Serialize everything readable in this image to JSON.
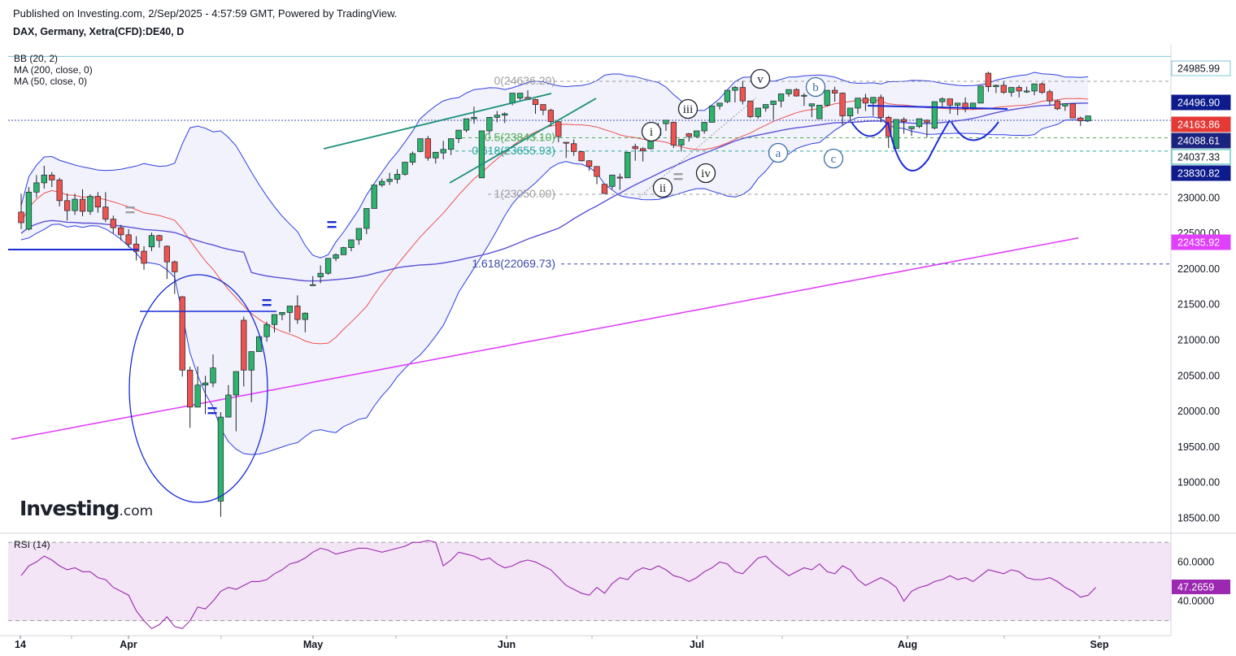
{
  "header": {
    "published": "Published on Investing.com, 2/Sep/2025 - 4:57:59 GMT, Powered by TradingView.",
    "symbol": "DAX, Germany, Xetra(CFD):DE40, D"
  },
  "indicators": {
    "bb": "BB (20, 2)",
    "ma200": "MA (200, close, 0)",
    "ma50": "MA (50, close, 0)",
    "rsi": "RSI (14)"
  },
  "logo": {
    "main": "Investing",
    "suffix": ".com"
  },
  "chart_data": [
    {
      "type": "candlestick",
      "title": "DAX, Germany, Xetra(CFD):DE40, D",
      "x_labels": [
        "14",
        "Apr",
        "May",
        "Jun",
        "Jul",
        "Aug",
        "Sep"
      ],
      "y_ticks": [
        18500,
        19000,
        19500,
        20000,
        20500,
        21000,
        21500,
        22000,
        22500,
        23000
      ],
      "ylim": [
        18300,
        25150
      ],
      "grid": false,
      "price_tags": [
        {
          "value": "24985.99",
          "bg": "#ffffff",
          "fg": "#131722",
          "border": "#7ec8d8"
        },
        {
          "value": "24496.90",
          "bg": "#0d1b8c",
          "fg": "#ffffff"
        },
        {
          "value": "24163.86",
          "bg": "#e53935",
          "fg": "#ffffff"
        },
        {
          "value": "24088.61",
          "bg": "#1a237e",
          "fg": "#ffffff"
        },
        {
          "value": "24037.33",
          "bg": "#ffffff",
          "fg": "#131722",
          "border": "#2bb3a8"
        },
        {
          "value": "23830.82",
          "bg": "#0d1b8c",
          "fg": "#ffffff"
        },
        {
          "value": "22435.92",
          "bg": "#e040fb",
          "fg": "#ffffff"
        }
      ],
      "fib_levels": [
        {
          "label": "0(24636.20)",
          "value": 24636.2,
          "color": "#9e9e9e"
        },
        {
          "label": "0.5(23843.10)",
          "value": 23843.1,
          "color": "#4caf50"
        },
        {
          "label": "0.618(23655.93)",
          "value": 23655.93,
          "color": "#26a69a"
        },
        {
          "label": "1(23050.00)",
          "value": 23050.0,
          "color": "#9e9e9e"
        },
        {
          "label": "1.618(22069.73)",
          "value": 22069.73,
          "color": "#3949ab"
        }
      ],
      "wave_labels": [
        "i",
        "ii",
        "iii",
        "iv",
        "v",
        "a",
        "b",
        "c"
      ],
      "equal_marks": [
        "=",
        "=",
        "=",
        "=",
        "=",
        "="
      ],
      "candles": [
        [
          22800,
          23060,
          22650,
          22560
        ],
        [
          22560,
          23150,
          23080,
          22540
        ],
        [
          23080,
          23320,
          23210,
          23000
        ],
        [
          23210,
          23450,
          23320,
          23130
        ],
        [
          23320,
          23360,
          23250,
          23150
        ],
        [
          23250,
          23280,
          22960,
          22880
        ],
        [
          22960,
          23060,
          22820,
          22680
        ],
        [
          22820,
          23060,
          22980,
          22760
        ],
        [
          22980,
          23120,
          22810,
          22740
        ],
        [
          22810,
          23050,
          23020,
          22760
        ],
        [
          23020,
          23080,
          22870,
          22790
        ],
        [
          22870,
          23080,
          22700,
          22660
        ],
        [
          22700,
          22750,
          22580,
          22500
        ],
        [
          22580,
          22620,
          22480,
          22400
        ],
        [
          22480,
          22560,
          22350,
          22300
        ],
        [
          22350,
          22460,
          22250,
          22120
        ],
        [
          22250,
          22320,
          22080,
          21990
        ],
        [
          22310,
          22510,
          22470,
          22250
        ],
        [
          22470,
          22480,
          22400,
          22300
        ],
        [
          22320,
          22330,
          22100,
          21860
        ],
        [
          22100,
          22120,
          21960,
          21650
        ],
        [
          21610,
          21620,
          20580,
          20490
        ],
        [
          20580,
          20630,
          20060,
          19770
        ],
        [
          20060,
          20630,
          20370,
          20200
        ],
        [
          20370,
          20500,
          20400,
          19960
        ],
        [
          20400,
          20800,
          20610,
          20340
        ],
        [
          18740,
          19990,
          19920,
          18520
        ],
        [
          19920,
          20370,
          20230,
          19930
        ],
        [
          20230,
          20490,
          20560,
          19720
        ],
        [
          21280,
          21330,
          20580,
          20350
        ],
        [
          20580,
          20770,
          20840,
          20130
        ],
        [
          20840,
          20990,
          21050,
          20930
        ],
        [
          21050,
          21260,
          21220,
          20980
        ],
        [
          21220,
          21300,
          21360,
          21110
        ],
        [
          21360,
          21370,
          21390,
          21280
        ],
        [
          21390,
          21480,
          21480,
          21110
        ],
        [
          21480,
          21630,
          21290,
          21230
        ],
        [
          21290,
          21390,
          21380,
          21110
        ],
        [
          21780,
          21900,
          21780,
          21770
        ],
        [
          21890,
          22050,
          21940,
          21800
        ],
        [
          21940,
          22140,
          22150,
          21920
        ],
        [
          22150,
          22220,
          22200,
          22110
        ],
        [
          22200,
          22310,
          22300,
          22230
        ],
        [
          22300,
          22390,
          22410,
          22250
        ],
        [
          22410,
          22430,
          22570,
          22340
        ],
        [
          22570,
          22610,
          22850,
          22490
        ],
        [
          22850,
          23150,
          23180,
          22890
        ],
        [
          23180,
          23270,
          23230,
          23150
        ],
        [
          23230,
          23350,
          23260,
          23180
        ],
        [
          23260,
          23400,
          23330,
          23200
        ],
        [
          23330,
          23490,
          23500,
          23310
        ],
        [
          23500,
          23650,
          23620,
          23460
        ],
        [
          23650,
          23760,
          23830,
          23640
        ],
        [
          23830,
          23870,
          23560,
          23520
        ],
        [
          23560,
          23590,
          23640,
          23480
        ],
        [
          23630,
          23800,
          23680,
          23540
        ],
        [
          23680,
          23820,
          23830,
          23600
        ],
        [
          23830,
          23900,
          23950,
          23770
        ],
        [
          23950,
          24050,
          24110,
          23920
        ],
        [
          24110,
          24280,
          24130,
          24040
        ],
        [
          23280,
          23330,
          23940,
          23880
        ],
        [
          23940,
          23990,
          24130,
          23900
        ],
        [
          24130,
          24220,
          24160,
          24060
        ],
        [
          24160,
          24200,
          24180,
          24050
        ],
        [
          24330,
          24370,
          24470,
          24300
        ],
        [
          24400,
          24450,
          24470,
          24370
        ],
        [
          24410,
          24510,
          24380,
          24370
        ],
        [
          24380,
          24390,
          24310,
          24180
        ],
        [
          24310,
          24280,
          24230,
          24160
        ],
        [
          24230,
          24250,
          24070,
          24000
        ],
        [
          24070,
          24040,
          23860,
          23780
        ],
        [
          23780,
          23690,
          23770,
          23560
        ],
        [
          23760,
          23820,
          23650,
          23590
        ],
        [
          23650,
          23620,
          23520,
          23510
        ],
        [
          23520,
          23530,
          23440,
          23380
        ],
        [
          23440,
          23430,
          23300,
          23190
        ],
        [
          23190,
          23160,
          23060,
          23070
        ],
        [
          23160,
          23270,
          23320,
          23120
        ],
        [
          23290,
          23340,
          23280,
          23110
        ],
        [
          23280,
          23300,
          23640,
          23320
        ],
        [
          23720,
          23760,
          23690,
          23520
        ],
        [
          23690,
          23710,
          23660,
          23510
        ],
        [
          23690,
          23890,
          23880,
          23680
        ],
        [
          23880,
          24050,
          23970,
          23830
        ],
        [
          24040,
          24000,
          24090,
          23940
        ],
        [
          24060,
          24070,
          23740,
          23700
        ],
        [
          23740,
          23720,
          23820,
          23650
        ],
        [
          23900,
          23910,
          23860,
          23790
        ],
        [
          23860,
          23890,
          23940,
          23850
        ],
        [
          23940,
          23930,
          24060,
          23900
        ],
        [
          24060,
          24040,
          24290,
          24090
        ],
        [
          24290,
          24250,
          24330,
          24240
        ],
        [
          24350,
          24380,
          24510,
          24330
        ],
        [
          24510,
          24570,
          24550,
          24340
        ],
        [
          24550,
          24640,
          24360,
          24310
        ],
        [
          24360,
          24330,
          24140,
          24120
        ],
        [
          24140,
          24120,
          24260,
          24110
        ],
        [
          24260,
          24230,
          24310,
          24210
        ],
        [
          24310,
          24340,
          24360,
          24100
        ],
        [
          24360,
          24460,
          24460,
          24270
        ],
        [
          24460,
          24520,
          24520,
          24420
        ],
        [
          24520,
          24540,
          24430,
          24420
        ],
        [
          24430,
          24470,
          24440,
          24290
        ],
        [
          24290,
          24300,
          24320,
          24130
        ],
        [
          24110,
          24080,
          24300,
          24180
        ],
        [
          24300,
          24330,
          24510,
          24280
        ],
        [
          24510,
          24560,
          24470,
          24350
        ],
        [
          24470,
          24480,
          24150,
          24020
        ],
        [
          24150,
          24100,
          24260,
          24070
        ],
        [
          24260,
          24320,
          24400,
          24180
        ],
        [
          24400,
          24460,
          24330,
          24220
        ],
        [
          24330,
          24350,
          24410,
          24150
        ],
        [
          24410,
          24450,
          24130,
          24060
        ],
        [
          24130,
          24150,
          23860,
          23700
        ],
        [
          23690,
          23610,
          24100,
          23690
        ],
        [
          24100,
          24130,
          24070,
          23900
        ],
        [
          23970,
          23900,
          24000,
          23870
        ],
        [
          24000,
          24060,
          24110,
          23980
        ],
        [
          24090,
          24100,
          24060,
          23850
        ],
        [
          23980,
          24220,
          24350,
          23960
        ],
        [
          24350,
          24410,
          24390,
          24280
        ],
        [
          24390,
          24380,
          24300,
          24180
        ],
        [
          24300,
          24330,
          24330,
          24160
        ],
        [
          24330,
          24410,
          24250,
          24200
        ],
        [
          24250,
          24260,
          24330,
          24240
        ],
        [
          24330,
          24360,
          24570,
          24340
        ],
        [
          24750,
          24770,
          24560,
          24490
        ],
        [
          24560,
          24590,
          24580,
          24470
        ],
        [
          24580,
          24630,
          24480,
          24460
        ],
        [
          24480,
          24540,
          24550,
          24420
        ],
        [
          24550,
          24580,
          24500,
          24410
        ],
        [
          24500,
          24560,
          24500,
          24470
        ],
        [
          24500,
          24570,
          24600,
          24440
        ],
        [
          24600,
          24620,
          24480,
          24460
        ],
        [
          24490,
          24520,
          24360,
          24300
        ],
        [
          24360,
          24380,
          24250,
          24230
        ],
        [
          24290,
          24320,
          24320,
          24220
        ],
        [
          24320,
          24310,
          24120,
          24120
        ],
        [
          24120,
          24140,
          24080,
          24010
        ],
        [
          24080,
          24130,
          24150,
          24070
        ]
      ],
      "ma200": {
        "from": 19610,
        "to": 22435.92
      },
      "rsi": {
        "ylim": [
          24,
          73
        ],
        "y_ticks": [
          40,
          60
        ],
        "bands": [
          30,
          70
        ],
        "current": "47.2659",
        "values": [
          53,
          58,
          60,
          63,
          61,
          58,
          56,
          57,
          55,
          55,
          52,
          51,
          47,
          45,
          43,
          35,
          30,
          26,
          28,
          32,
          27,
          26,
          30,
          37,
          36,
          40,
          45,
          47,
          46,
          48,
          50,
          50,
          51,
          54,
          56,
          59,
          60,
          62,
          65,
          67,
          66,
          64,
          65,
          66,
          67,
          67,
          66,
          65,
          66,
          67,
          68,
          70,
          70,
          71,
          70,
          58,
          61,
          65,
          64,
          63,
          61,
          62,
          59,
          57,
          58,
          60,
          61,
          60,
          58,
          56,
          52,
          48,
          46,
          44,
          43,
          47,
          44,
          49,
          52,
          51,
          55,
          57,
          56,
          58,
          56,
          53,
          52,
          50,
          52,
          55,
          57,
          60,
          59,
          55,
          54,
          58,
          62,
          63,
          59,
          56,
          53,
          55,
          57,
          56,
          59,
          55,
          54,
          58,
          56,
          51,
          48,
          50,
          52,
          50,
          47,
          40,
          45,
          47,
          48,
          50,
          51,
          53,
          51,
          52,
          50,
          53,
          56,
          55,
          54,
          56,
          55,
          52,
          51,
          51,
          52,
          50,
          47,
          45,
          42,
          43,
          47
        ]
      }
    }
  ]
}
